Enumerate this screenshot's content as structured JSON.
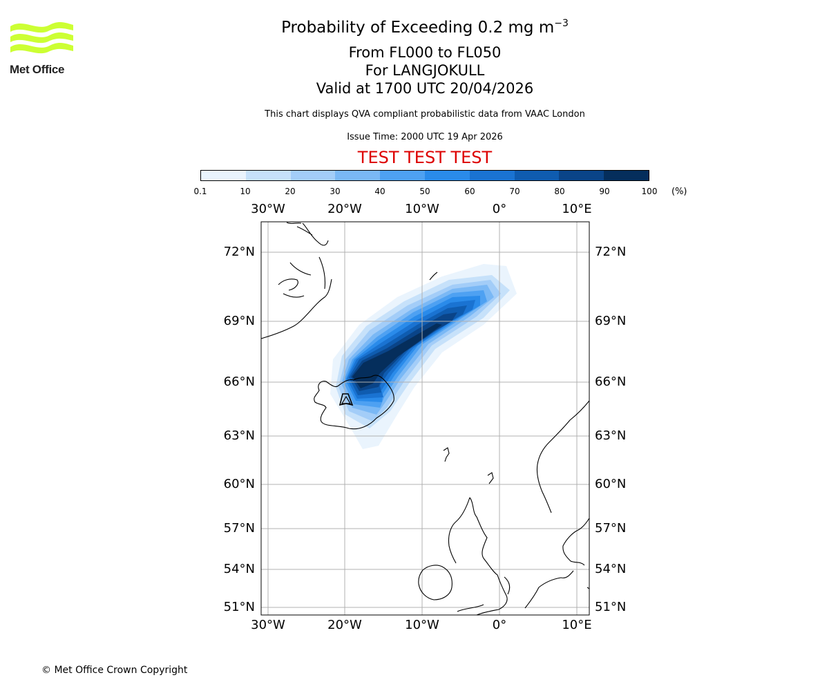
{
  "header": {
    "title_prefix": "Probability of Exceeding 0.2 mg m",
    "title_exponent": "−3",
    "levels": "From FL000 to FL050",
    "volcano": "For LANGJOKULL",
    "valid": "Valid at 1700 UTC 20/04/2026",
    "description": "This chart displays QVA compliant probabilistic data from VAAC London",
    "issue_time": "Issue Time: 2000 UTC 19 Apr 2026",
    "test_banner": "TEST TEST TEST",
    "test_color": "#dd0000"
  },
  "logo": {
    "text": "Met Office",
    "color": "#ccff33",
    "icon": "met-office-waves-logo"
  },
  "colorbar": {
    "ticks": [
      "0.1",
      "10",
      "20",
      "30",
      "40",
      "50",
      "60",
      "70",
      "80",
      "90",
      "100"
    ],
    "unit": "(%)",
    "colors": [
      "#eaf4fd",
      "#c6e1fa",
      "#a3cdf8",
      "#7ab8f5",
      "#4ea1f2",
      "#2a8bea",
      "#1a73d2",
      "#0f5cb0",
      "#0a4488",
      "#052e5c"
    ]
  },
  "map": {
    "lon_labels": [
      "30°W",
      "20°W",
      "10°W",
      "0°",
      "10°E"
    ],
    "lat_labels": [
      "72°N",
      "69°N",
      "66°N",
      "63°N",
      "60°N",
      "57°N",
      "54°N",
      "51°N"
    ],
    "volcano_marker": "volcano-triangle-icon"
  },
  "footer": {
    "copyright": "© Met Office Crown Copyright"
  }
}
